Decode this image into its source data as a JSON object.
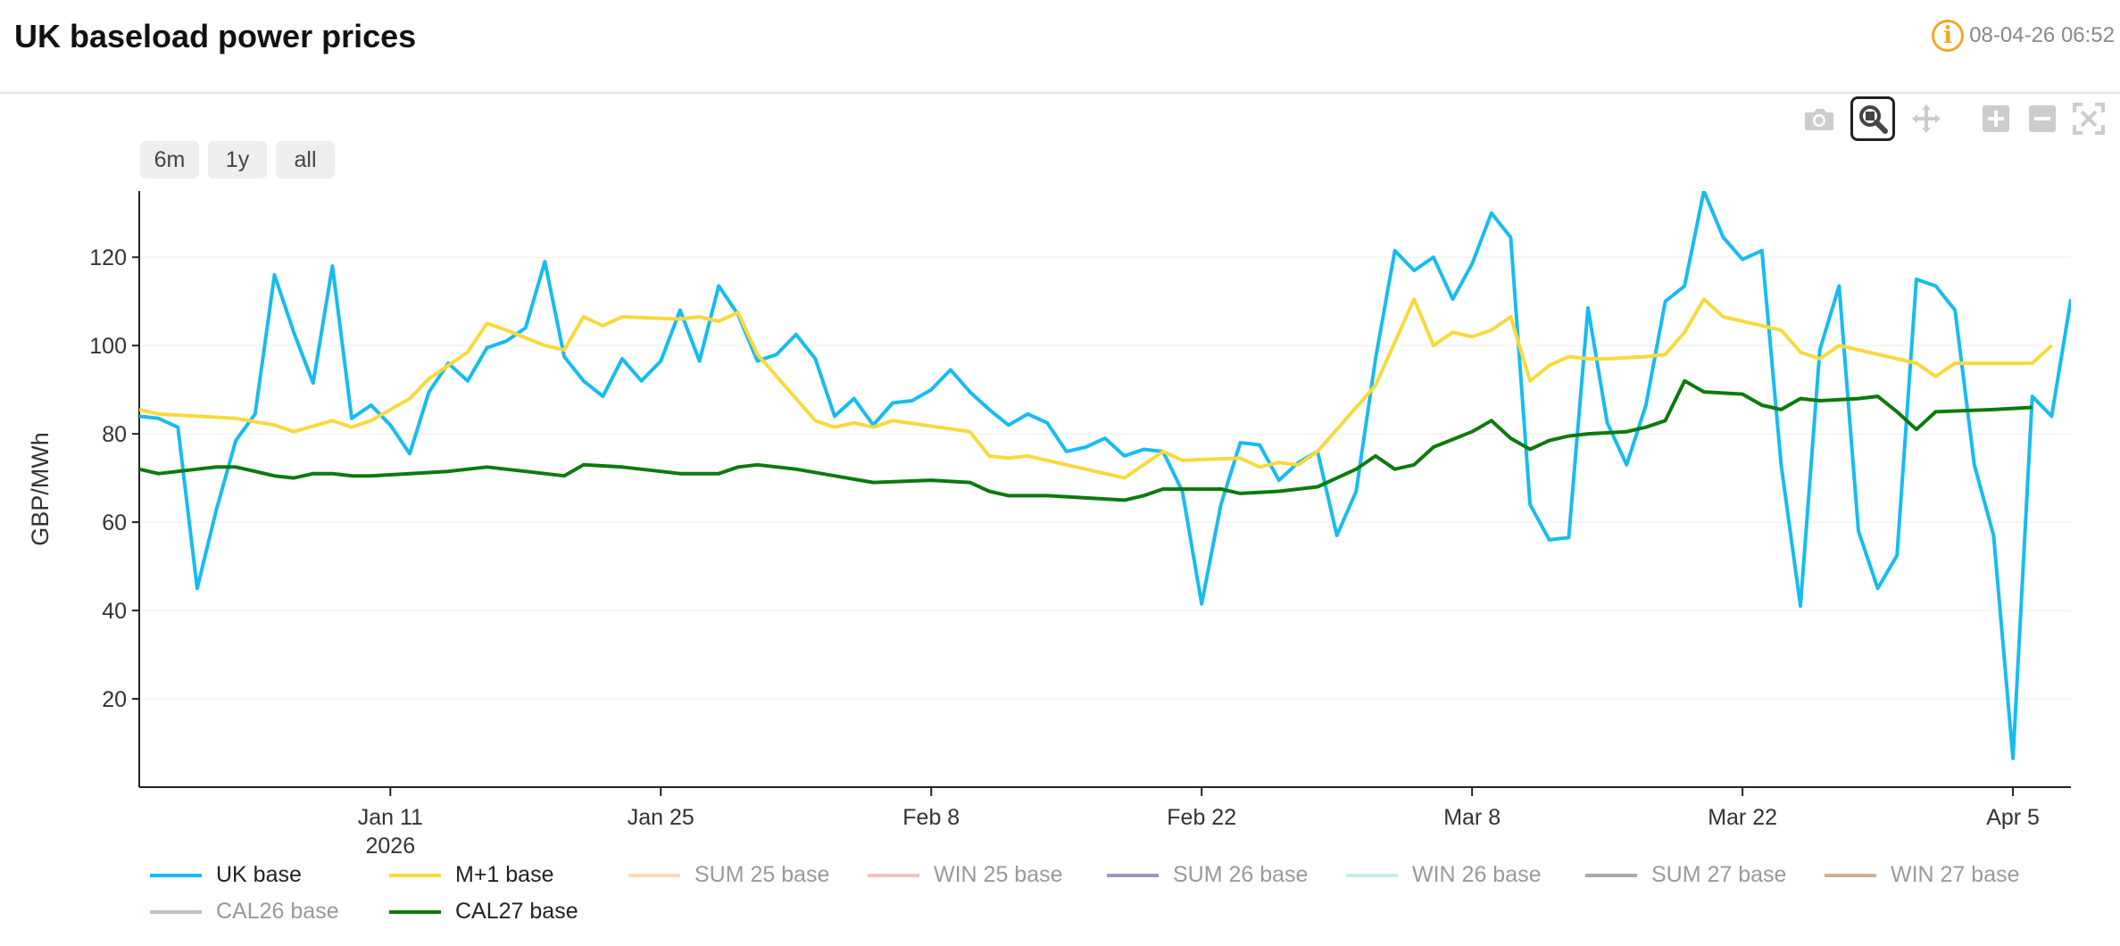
{
  "header": {
    "title": "UK baseload power prices",
    "timestamp": "08-04-26 06:52",
    "info_icon": "info-icon"
  },
  "modebar": [
    {
      "name": "camera-icon",
      "label": "Download plot as png"
    },
    {
      "name": "zoom-icon",
      "label": "Zoom",
      "active": true
    },
    {
      "name": "pan-icon",
      "label": "Pan"
    },
    {
      "name": "zoom-in-icon",
      "label": "Zoom in"
    },
    {
      "name": "zoom-out-icon",
      "label": "Zoom out"
    },
    {
      "name": "autoscale-icon",
      "label": "Autoscale"
    }
  ],
  "range_buttons": [
    "6m",
    "1y",
    "all"
  ],
  "colors": {
    "uk_base": "#17bcef",
    "m1_base": "#f8d93d",
    "cal27_base": "#0c7a0c",
    "axis": "#222222",
    "grid": "#eeeeee"
  },
  "chart_data": {
    "type": "line",
    "title": "UK baseload power prices",
    "ylabel": "GBP/MWh",
    "xlabel": "",
    "x_start": "2025-12-29",
    "x_range": [
      "2025-12-29",
      "2026-04-08"
    ],
    "ylim": [
      0,
      135
    ],
    "y_ticks": [
      20,
      40,
      60,
      80,
      100,
      120
    ],
    "x_ticks": [
      {
        "date": "2026-01-11",
        "label": "Jan 11",
        "sublabel": "2026"
      },
      {
        "date": "2026-01-25",
        "label": "Jan 25"
      },
      {
        "date": "2026-02-08",
        "label": "Feb 8"
      },
      {
        "date": "2026-02-22",
        "label": "Feb 22"
      },
      {
        "date": "2026-03-08",
        "label": "Mar 8"
      },
      {
        "date": "2026-03-22",
        "label": "Mar 22"
      },
      {
        "date": "2026-04-05",
        "label": "Apr 5"
      }
    ],
    "series": [
      {
        "key": "uk_base",
        "name": "UK base",
        "color": "#17bcef",
        "points": [
          [
            "2025-12-29",
            84
          ],
          [
            "2025-12-30",
            83.5
          ],
          [
            "2025-12-31",
            81.5
          ],
          [
            "2026-01-01",
            45
          ],
          [
            "2026-01-02",
            63
          ],
          [
            "2026-01-03",
            78.5
          ],
          [
            "2026-01-04",
            84.5
          ],
          [
            "2026-01-05",
            116
          ],
          [
            "2026-01-06",
            103
          ],
          [
            "2026-01-07",
            91.5
          ],
          [
            "2026-01-08",
            118
          ],
          [
            "2026-01-09",
            83.5
          ],
          [
            "2026-01-10",
            86.5
          ],
          [
            "2026-01-11",
            82
          ],
          [
            "2026-01-12",
            75.5
          ],
          [
            "2026-01-13",
            89.5
          ],
          [
            "2026-01-14",
            96
          ],
          [
            "2026-01-15",
            92
          ],
          [
            "2026-01-16",
            99.5
          ],
          [
            "2026-01-17",
            101
          ],
          [
            "2026-01-18",
            104
          ],
          [
            "2026-01-19",
            119
          ],
          [
            "2026-01-20",
            97.5
          ],
          [
            "2026-01-21",
            92
          ],
          [
            "2026-01-22",
            88.5
          ],
          [
            "2026-01-23",
            97
          ],
          [
            "2026-01-24",
            92
          ],
          [
            "2026-01-25",
            96.5
          ],
          [
            "2026-01-26",
            108
          ],
          [
            "2026-01-27",
            96.5
          ],
          [
            "2026-01-28",
            113.5
          ],
          [
            "2026-01-29",
            107
          ],
          [
            "2026-01-30",
            96.5
          ],
          [
            "2026-01-31",
            98
          ],
          [
            "2026-02-01",
            102.5
          ],
          [
            "2026-02-02",
            97
          ],
          [
            "2026-02-03",
            84
          ],
          [
            "2026-02-04",
            88
          ],
          [
            "2026-02-05",
            82
          ],
          [
            "2026-02-06",
            87
          ],
          [
            "2026-02-07",
            87.5
          ],
          [
            "2026-02-08",
            90
          ],
          [
            "2026-02-09",
            94.5
          ],
          [
            "2026-02-10",
            89.5
          ],
          [
            "2026-02-11",
            85.5
          ],
          [
            "2026-02-12",
            82
          ],
          [
            "2026-02-13",
            84.5
          ],
          [
            "2026-02-14",
            82.5
          ],
          [
            "2026-02-15",
            76
          ],
          [
            "2026-02-16",
            77
          ],
          [
            "2026-02-17",
            79
          ],
          [
            "2026-02-18",
            75
          ],
          [
            "2026-02-19",
            76.5
          ],
          [
            "2026-02-20",
            76
          ],
          [
            "2026-02-21",
            67
          ],
          [
            "2026-02-22",
            41.5
          ],
          [
            "2026-02-23",
            64
          ],
          [
            "2026-02-24",
            78
          ],
          [
            "2026-02-25",
            77.5
          ],
          [
            "2026-02-26",
            69.5
          ],
          [
            "2026-02-27",
            73.5
          ],
          [
            "2026-02-28",
            76
          ],
          [
            "2026-03-01",
            57
          ],
          [
            "2026-03-02",
            67
          ],
          [
            "2026-03-03",
            97
          ],
          [
            "2026-03-04",
            121.5
          ],
          [
            "2026-03-05",
            117
          ],
          [
            "2026-03-06",
            120
          ],
          [
            "2026-03-07",
            110.5
          ],
          [
            "2026-03-08",
            118.5
          ],
          [
            "2026-03-09",
            130
          ],
          [
            "2026-03-10",
            124.5
          ],
          [
            "2026-03-11",
            64
          ],
          [
            "2026-03-12",
            56
          ],
          [
            "2026-03-13",
            56.5
          ],
          [
            "2026-03-14",
            108.5
          ],
          [
            "2026-03-15",
            82.5
          ],
          [
            "2026-03-16",
            73
          ],
          [
            "2026-03-17",
            86.5
          ],
          [
            "2026-03-18",
            110
          ],
          [
            "2026-03-19",
            113.5
          ],
          [
            "2026-03-20",
            135
          ],
          [
            "2026-03-21",
            124.5
          ],
          [
            "2026-03-22",
            119.5
          ],
          [
            "2026-03-23",
            121.5
          ],
          [
            "2026-03-24",
            73
          ],
          [
            "2026-03-25",
            41
          ],
          [
            "2026-03-26",
            99
          ],
          [
            "2026-03-27",
            113.5
          ],
          [
            "2026-03-28",
            58
          ],
          [
            "2026-03-29",
            45
          ],
          [
            "2026-03-30",
            52.5
          ],
          [
            "2026-03-31",
            115
          ],
          [
            "2026-04-01",
            113.5
          ],
          [
            "2026-04-02",
            108
          ],
          [
            "2026-04-03",
            73
          ],
          [
            "2026-04-04",
            57
          ],
          [
            "2026-04-05",
            6.5
          ],
          [
            "2026-04-06",
            88.5
          ],
          [
            "2026-04-07",
            84
          ],
          [
            "2026-04-08",
            110.5
          ]
        ]
      },
      {
        "key": "m1_base",
        "name": "M+1 base",
        "color": "#f8d93d",
        "points": [
          [
            "2025-12-29",
            85.5
          ],
          [
            "2025-12-30",
            84.5
          ],
          [
            "2026-01-01",
            84
          ],
          [
            "2026-01-03",
            83.5
          ],
          [
            "2026-01-05",
            82
          ],
          [
            "2026-01-06",
            80.5
          ],
          [
            "2026-01-08",
            83
          ],
          [
            "2026-01-09",
            81.5
          ],
          [
            "2026-01-10",
            83
          ],
          [
            "2026-01-12",
            88
          ],
          [
            "2026-01-13",
            92.5
          ],
          [
            "2026-01-15",
            98.5
          ],
          [
            "2026-01-16",
            105
          ],
          [
            "2026-01-17",
            103.5
          ],
          [
            "2026-01-19",
            100
          ],
          [
            "2026-01-20",
            99
          ],
          [
            "2026-01-21",
            106.5
          ],
          [
            "2026-01-22",
            104.5
          ],
          [
            "2026-01-23",
            106.5
          ],
          [
            "2026-01-26",
            106
          ],
          [
            "2026-01-27",
            106.5
          ],
          [
            "2026-01-28",
            105.5
          ],
          [
            "2026-01-29",
            107.5
          ],
          [
            "2026-01-30",
            98
          ],
          [
            "2026-02-02",
            83
          ],
          [
            "2026-02-03",
            81.5
          ],
          [
            "2026-02-04",
            82.5
          ],
          [
            "2026-02-05",
            81.5
          ],
          [
            "2026-02-06",
            83
          ],
          [
            "2026-02-10",
            80.5
          ],
          [
            "2026-02-11",
            75
          ],
          [
            "2026-02-12",
            74.5
          ],
          [
            "2026-02-13",
            75
          ],
          [
            "2026-02-16",
            72
          ],
          [
            "2026-02-18",
            70
          ],
          [
            "2026-02-20",
            76
          ],
          [
            "2026-02-21",
            74
          ],
          [
            "2026-02-24",
            74.5
          ],
          [
            "2026-02-25",
            72.5
          ],
          [
            "2026-02-26",
            73.5
          ],
          [
            "2026-02-27",
            73
          ],
          [
            "2026-02-28",
            76
          ],
          [
            "2026-03-03",
            91
          ],
          [
            "2026-03-05",
            110.5
          ],
          [
            "2026-03-06",
            100
          ],
          [
            "2026-03-07",
            103
          ],
          [
            "2026-03-08",
            102
          ],
          [
            "2026-03-09",
            103.5
          ],
          [
            "2026-03-10",
            106.5
          ],
          [
            "2026-03-11",
            92
          ],
          [
            "2026-03-12",
            95.5
          ],
          [
            "2026-03-13",
            97.5
          ],
          [
            "2026-03-14",
            97
          ],
          [
            "2026-03-15",
            97
          ],
          [
            "2026-03-17",
            97.5
          ],
          [
            "2026-03-18",
            98
          ],
          [
            "2026-03-19",
            103
          ],
          [
            "2026-03-20",
            110.5
          ],
          [
            "2026-03-21",
            106.5
          ],
          [
            "2026-03-24",
            103.5
          ],
          [
            "2026-03-25",
            98.5
          ],
          [
            "2026-03-26",
            97
          ],
          [
            "2026-03-27",
            100
          ],
          [
            "2026-03-28",
            99
          ],
          [
            "2026-03-31",
            96
          ],
          [
            "2026-04-01",
            93
          ],
          [
            "2026-04-02",
            96
          ],
          [
            "2026-04-06",
            96
          ],
          [
            "2026-04-07",
            100
          ]
        ]
      },
      {
        "key": "sum25_base",
        "name": "SUM 25 base",
        "color": "#ffb366",
        "hidden": true,
        "points": []
      },
      {
        "key": "win25_base",
        "name": "WIN 25 base",
        "color": "#f08080",
        "hidden": true,
        "points": []
      },
      {
        "key": "sum26_base",
        "name": "SUM 26 base",
        "color": "#3a2e8c",
        "hidden": true,
        "points": []
      },
      {
        "key": "win26_base",
        "name": "WIN 26 base",
        "color": "#7fe0d0",
        "hidden": true,
        "points": []
      },
      {
        "key": "sum27_base",
        "name": "SUM 27 base",
        "color": "#555555",
        "hidden": true,
        "points": []
      },
      {
        "key": "win27_base",
        "name": "WIN 27 base",
        "color": "#a0602a",
        "hidden": true,
        "points": []
      },
      {
        "key": "cal26_base",
        "name": "CAL26 base",
        "color": "#6e8a6e",
        "hidden": true,
        "points": []
      },
      {
        "key": "cal27_base",
        "name": "CAL27 base",
        "color": "#0c7a0c",
        "points": [
          [
            "2025-12-29",
            72
          ],
          [
            "2025-12-30",
            71
          ],
          [
            "2025-12-31",
            71.5
          ],
          [
            "2026-01-01",
            72
          ],
          [
            "2026-01-02",
            72.5
          ],
          [
            "2026-01-03",
            72.5
          ],
          [
            "2026-01-04",
            71.5
          ],
          [
            "2026-01-05",
            70.5
          ],
          [
            "2026-01-06",
            70
          ],
          [
            "2026-01-07",
            71
          ],
          [
            "2026-01-08",
            71
          ],
          [
            "2026-01-09",
            70.5
          ],
          [
            "2026-01-10",
            70.5
          ],
          [
            "2026-01-12",
            71
          ],
          [
            "2026-01-14",
            71.5
          ],
          [
            "2026-01-16",
            72.5
          ],
          [
            "2026-01-18",
            71.5
          ],
          [
            "2026-01-20",
            70.5
          ],
          [
            "2026-01-21",
            73
          ],
          [
            "2026-01-23",
            72.5
          ],
          [
            "2026-01-25",
            71.5
          ],
          [
            "2026-01-26",
            71
          ],
          [
            "2026-01-28",
            71
          ],
          [
            "2026-01-29",
            72.5
          ],
          [
            "2026-01-30",
            73
          ],
          [
            "2026-02-01",
            72
          ],
          [
            "2026-02-03",
            70.5
          ],
          [
            "2026-02-05",
            69
          ],
          [
            "2026-02-08",
            69.5
          ],
          [
            "2026-02-10",
            69
          ],
          [
            "2026-02-11",
            67
          ],
          [
            "2026-02-12",
            66
          ],
          [
            "2026-02-14",
            66
          ],
          [
            "2026-02-16",
            65.5
          ],
          [
            "2026-02-18",
            65
          ],
          [
            "2026-02-19",
            66
          ],
          [
            "2026-02-20",
            67.5
          ],
          [
            "2026-02-22",
            67.5
          ],
          [
            "2026-02-23",
            67.5
          ],
          [
            "2026-02-24",
            66.5
          ],
          [
            "2026-02-26",
            67
          ],
          [
            "2026-02-28",
            68
          ],
          [
            "2026-03-01",
            70
          ],
          [
            "2026-03-02",
            72
          ],
          [
            "2026-03-03",
            75
          ],
          [
            "2026-03-04",
            72
          ],
          [
            "2026-03-05",
            73
          ],
          [
            "2026-03-06",
            77
          ],
          [
            "2026-03-08",
            80.5
          ],
          [
            "2026-03-09",
            83
          ],
          [
            "2026-03-10",
            79
          ],
          [
            "2026-03-11",
            76.5
          ],
          [
            "2026-03-12",
            78.5
          ],
          [
            "2026-03-13",
            79.5
          ],
          [
            "2026-03-14",
            80
          ],
          [
            "2026-03-16",
            80.5
          ],
          [
            "2026-03-17",
            81.5
          ],
          [
            "2026-03-18",
            83
          ],
          [
            "2026-03-19",
            92
          ],
          [
            "2026-03-20",
            89.5
          ],
          [
            "2026-03-22",
            89
          ],
          [
            "2026-03-23",
            86.5
          ],
          [
            "2026-03-24",
            85.5
          ],
          [
            "2026-03-25",
            88
          ],
          [
            "2026-03-26",
            87.5
          ],
          [
            "2026-03-28",
            88
          ],
          [
            "2026-03-29",
            88.5
          ],
          [
            "2026-03-30",
            85
          ],
          [
            "2026-03-31",
            81
          ],
          [
            "2026-04-01",
            85
          ],
          [
            "2026-04-04",
            85.5
          ],
          [
            "2026-04-06",
            86
          ]
        ]
      }
    ]
  }
}
